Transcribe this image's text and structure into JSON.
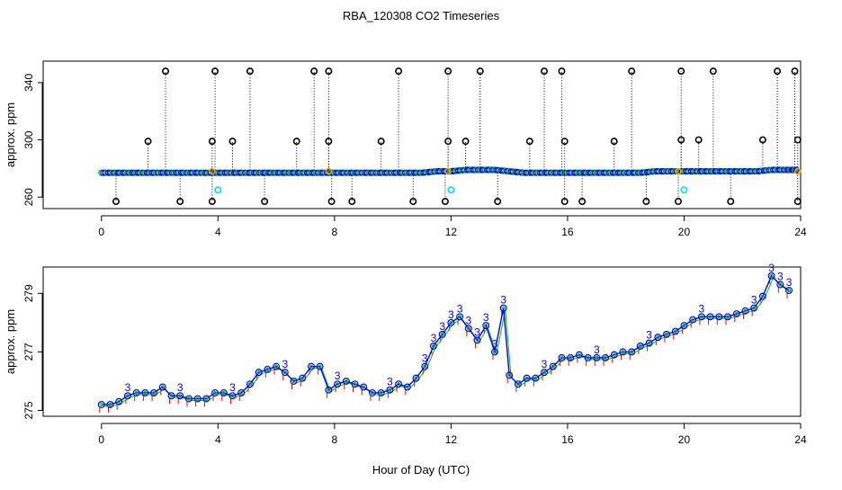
{
  "figure": {
    "title": "RBA_120308  CO2 Timeseries",
    "xlabel": "Hour of Day (UTC)"
  },
  "colors": {
    "axis": "#000000",
    "series_blue": "#0000ff",
    "series_green": "#00c000",
    "series_red": "#ff0000",
    "series_cyan": "#00e0e0",
    "marker_black": "#000000",
    "marker_orange": "#ff9900"
  },
  "chart_data": [
    {
      "type": "scatter",
      "panel": "top",
      "ylabel": "approx. ppm",
      "xlim": [
        -2.0,
        24.0
      ],
      "ylim": [
        252,
        355
      ],
      "xticks": [
        0,
        4,
        8,
        12,
        16,
        20,
        24
      ],
      "yticks": [
        260,
        300,
        340
      ],
      "baseline_series": {
        "name": "",
        "x": [
          0,
          0.5,
          1,
          1.5,
          2,
          2.5,
          3,
          3.5,
          4,
          4.5,
          5,
          5.5,
          6,
          6.5,
          7,
          7.5,
          8,
          8.5,
          9,
          9.5,
          10,
          10.5,
          11,
          11.5,
          12,
          12.5,
          13,
          13.5,
          14,
          14.5,
          15,
          15.5,
          16,
          16.5,
          17,
          17.5,
          18,
          18.5,
          19,
          19.5,
          20,
          20.5,
          21,
          21.5,
          22,
          22.5,
          23,
          23.5,
          23.9
        ],
        "y": [
          277,
          277,
          277,
          277,
          277,
          277,
          277,
          277,
          277,
          277,
          277,
          277,
          277,
          277,
          277,
          277,
          277,
          277,
          277,
          277,
          277,
          277,
          277,
          278,
          278,
          279,
          279,
          279,
          278,
          277,
          277,
          277,
          277,
          277,
          277,
          277,
          277,
          277,
          278,
          278,
          278,
          278,
          278,
          278,
          278,
          278,
          279,
          279,
          279
        ]
      },
      "high_outliers": {
        "x": [
          2.2,
          3.9,
          5.1,
          7.3,
          7.8,
          10.2,
          11.9,
          13.0,
          15.2,
          15.8,
          18.2,
          19.9,
          21.0,
          23.2,
          23.8
        ],
        "y": [
          348,
          348,
          348,
          348,
          348,
          348,
          348,
          348,
          348,
          348,
          348,
          348,
          348,
          348,
          348
        ]
      },
      "mid_outliers": {
        "x": [
          1.6,
          3.8,
          4.5,
          6.7,
          7.8,
          9.6,
          11.9,
          12.5,
          14.7,
          15.9,
          17.6,
          19.9,
          20.5,
          22.7,
          23.9
        ],
        "y": [
          299,
          299,
          299,
          299,
          299,
          299,
          299,
          299,
          299,
          299,
          299,
          300,
          300,
          300,
          300
        ]
      },
      "low_outliers": {
        "x": [
          0.5,
          2.7,
          3.8,
          5.6,
          7.9,
          8.6,
          10.7,
          11.8,
          13.6,
          15.9,
          16.5,
          18.7,
          19.8,
          21.6,
          23.9
        ],
        "y": [
          257,
          257,
          257,
          257,
          257,
          257,
          257,
          257,
          257,
          257,
          257,
          257,
          257,
          257,
          257
        ]
      },
      "cyan_points": {
        "x": [
          4.0,
          12.0,
          20.0
        ],
        "y": [
          265,
          265,
          265
        ]
      },
      "orange_points": {
        "x": [
          3.8,
          7.8,
          11.9,
          19.8,
          23.9
        ],
        "y": [
          278,
          278,
          278,
          278,
          278
        ]
      }
    },
    {
      "type": "line",
      "panel": "bottom",
      "ylabel": "approx. ppm",
      "xlim": [
        -2.0,
        24.0
      ],
      "ylim": [
        274.8,
        279.9
      ],
      "xticks": [
        0,
        4,
        8,
        12,
        16,
        20,
        24
      ],
      "yticks": [
        275,
        277,
        279
      ],
      "series": [
        {
          "name": "",
          "marker_label": "3",
          "x": [
            0,
            0.3,
            0.6,
            0.9,
            1.2,
            1.5,
            1.8,
            2.1,
            2.4,
            2.7,
            3.0,
            3.3,
            3.6,
            3.9,
            4.2,
            4.5,
            4.8,
            5.1,
            5.4,
            5.7,
            6.0,
            6.3,
            6.6,
            6.9,
            7.2,
            7.5,
            7.8,
            8.1,
            8.4,
            8.7,
            9.0,
            9.3,
            9.6,
            9.9,
            10.2,
            10.5,
            10.8,
            11.1,
            11.4,
            11.7,
            12.0,
            12.3,
            12.6,
            12.9,
            13.2,
            13.5,
            13.8,
            14.0,
            14.3,
            14.6,
            14.9,
            15.2,
            15.5,
            15.8,
            16.1,
            16.4,
            16.7,
            17.0,
            17.3,
            17.6,
            17.9,
            18.2,
            18.5,
            18.8,
            19.1,
            19.4,
            19.7,
            20.0,
            20.3,
            20.6,
            20.9,
            21.2,
            21.5,
            21.8,
            22.1,
            22.4,
            22.7,
            23.0,
            23.3,
            23.6
          ],
          "y": [
            275.2,
            275.2,
            275.3,
            275.5,
            275.6,
            275.6,
            275.6,
            275.8,
            275.5,
            275.5,
            275.4,
            275.4,
            275.4,
            275.6,
            275.6,
            275.5,
            275.6,
            275.9,
            276.3,
            276.4,
            276.5,
            276.3,
            276.0,
            276.1,
            276.5,
            276.5,
            275.7,
            275.9,
            276.0,
            275.9,
            275.8,
            275.6,
            275.6,
            275.7,
            275.9,
            275.8,
            276.1,
            276.5,
            277.2,
            277.6,
            278.0,
            278.2,
            277.8,
            277.4,
            277.9,
            277.0,
            278.5,
            276.2,
            275.9,
            276.1,
            276.1,
            276.3,
            276.5,
            276.8,
            276.8,
            276.9,
            276.8,
            276.8,
            276.8,
            276.9,
            277.0,
            277.0,
            277.2,
            277.3,
            277.5,
            277.6,
            277.7,
            277.9,
            278.1,
            278.2,
            278.2,
            278.2,
            278.2,
            278.3,
            278.4,
            278.5,
            278.9,
            279.6,
            279.3,
            279.1
          ]
        }
      ]
    }
  ]
}
